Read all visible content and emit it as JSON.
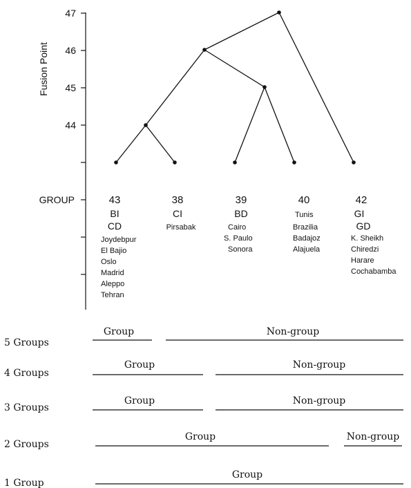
{
  "y_axis": {
    "label": "Fusion Point",
    "ticks": [
      "47",
      "46",
      "45",
      "44"
    ],
    "group_label": "GROUP"
  },
  "dendrogram": {
    "leaves": [
      {
        "id": "43",
        "codes": [
          "BI",
          "CD"
        ],
        "sites": [
          "Joydebpur",
          "El Bajio",
          "Oslo",
          "Madrid",
          "Aleppo",
          "Tehran"
        ]
      },
      {
        "id": "38",
        "codes": [
          "CI"
        ],
        "sites": [
          "Pirsabak"
        ]
      },
      {
        "id": "39",
        "codes": [
          "BD"
        ],
        "sites": [
          "Cairo",
          "S. Paulo",
          "Sonora"
        ]
      },
      {
        "id": "40",
        "codes": [],
        "sites": [
          "Tunis",
          "Brazilia",
          "Badajoz",
          "Alajuela"
        ]
      },
      {
        "id": "42",
        "codes": [
          "GI",
          "GD"
        ],
        "sites": [
          "K. Sheikh",
          "Chiredzi",
          "Harare",
          "Cochabamba"
        ]
      }
    ],
    "merges": [
      {
        "join": [
          "43",
          "38"
        ],
        "fusion": 44
      },
      {
        "join": [
          "39",
          "40"
        ],
        "fusion": 45
      },
      {
        "join": [
          "43+38",
          "39+40"
        ],
        "fusion": 46
      },
      {
        "join": [
          "43+38+39+40",
          "42"
        ],
        "fusion": 47
      }
    ]
  },
  "partitions": [
    {
      "label": "5 Groups",
      "segments": [
        {
          "text": "Group"
        },
        {
          "text": "Non-group"
        }
      ]
    },
    {
      "label": "4 Groups",
      "segments": [
        {
          "text": "Group"
        },
        {
          "text": "Non-group"
        }
      ]
    },
    {
      "label": "3 Groups",
      "segments": [
        {
          "text": "Group"
        },
        {
          "text": "Non-group"
        }
      ]
    },
    {
      "label": "2 Groups",
      "segments": [
        {
          "text": "Group"
        },
        {
          "text": "Non-group"
        }
      ]
    },
    {
      "label": "1 Group",
      "segments": [
        {
          "text": "Group"
        }
      ]
    }
  ]
}
